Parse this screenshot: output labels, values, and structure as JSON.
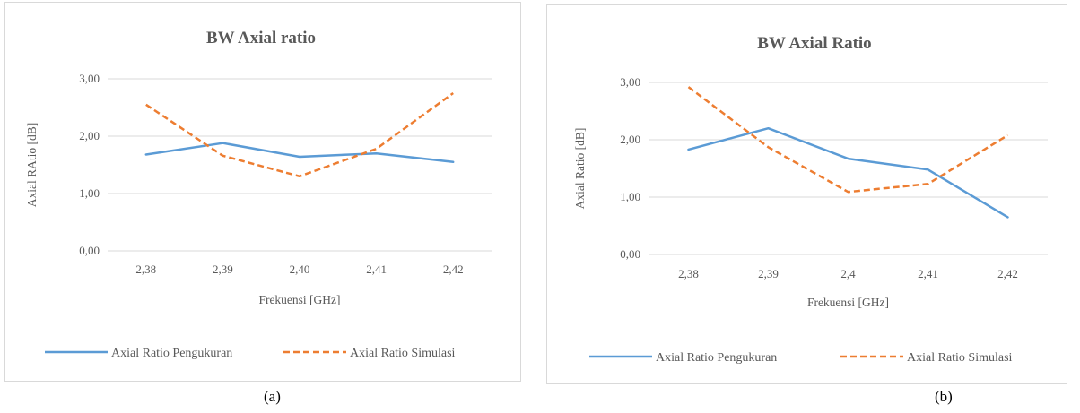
{
  "charts": [
    {
      "caption": "(a)",
      "chart_data": {
        "type": "line",
        "title": "BW Axial ratio",
        "xlabel": "Frekuensi [GHz]",
        "ylabel": "Axial RAtio [dB]",
        "categories": [
          "2,38",
          "2,39",
          "2,40",
          "2,41",
          "2,42"
        ],
        "yticks": [
          "0,00",
          "1,00",
          "2,00",
          "3,00"
        ],
        "ylim": [
          0,
          3
        ],
        "grid": true,
        "legend": "bottom",
        "series": [
          {
            "name": "Axial Ratio Pengukuran",
            "values": [
              1.68,
              1.88,
              1.64,
              1.7,
              1.55
            ],
            "color": "#5b9bd5",
            "style": "solid"
          },
          {
            "name": "Axial Ratio Simulasi",
            "values": [
              2.55,
              1.66,
              1.3,
              1.78,
              2.75
            ],
            "color": "#ed7d31",
            "style": "dashed"
          }
        ]
      }
    },
    {
      "caption": "(b)",
      "chart_data": {
        "type": "line",
        "title": "BW Axial Ratio",
        "xlabel": "Frekuensi [GHz]",
        "ylabel": "Axial Ratio [dB]",
        "categories": [
          "2,38",
          "2,39",
          "2,4",
          "2,41",
          "2,42"
        ],
        "yticks": [
          "0,00",
          "1,00",
          "2,00",
          "3,00"
        ],
        "ylim": [
          0,
          3
        ],
        "grid": true,
        "legend": "bottom",
        "series": [
          {
            "name": "Axial Ratio Pengukuran",
            "values": [
              1.83,
              2.2,
              1.67,
              1.48,
              0.65
            ],
            "color": "#5b9bd5",
            "style": "solid"
          },
          {
            "name": "Axial Ratio Simulasi",
            "values": [
              2.92,
              1.87,
              1.09,
              1.23,
              2.08
            ],
            "color": "#ed7d31",
            "style": "dashed"
          }
        ]
      }
    }
  ]
}
